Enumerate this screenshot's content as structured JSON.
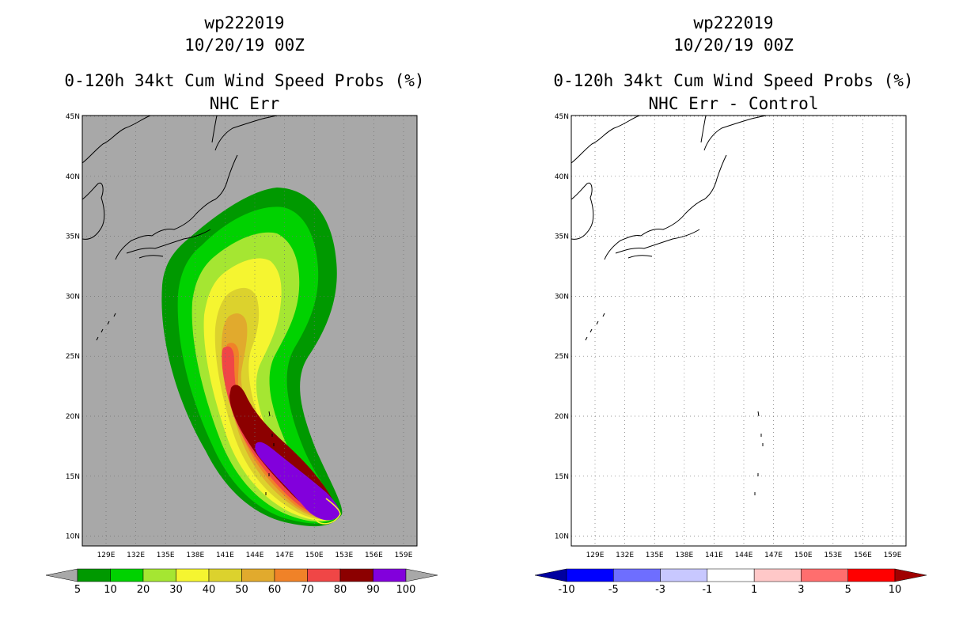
{
  "left": {
    "title_line1": "wp222019",
    "title_line2": "10/20/19 00Z",
    "title_line3": "0-120h 34kt Cum Wind Speed Probs (%)",
    "title_line4": "NHC Err",
    "background_color": "#a8a8a8"
  },
  "right": {
    "title_line1": "wp222019",
    "title_line2": "10/20/19 00Z",
    "title_line3": "0-120h 34kt Cum Wind Speed Probs (%)",
    "title_line4": "NHC Err - Control",
    "background_color": "#ffffff"
  },
  "axes": {
    "lat_labels": [
      "45N",
      "40N",
      "35N",
      "30N",
      "25N",
      "20N",
      "15N",
      "10N"
    ],
    "lon_labels": [
      "129E",
      "132E",
      "135E",
      "138E",
      "141E",
      "144E",
      "147E",
      "150E",
      "153E",
      "156E",
      "159E"
    ]
  },
  "prob_colorbar": {
    "colors": [
      "#a8a8a8",
      "#009900",
      "#00d200",
      "#a5e632",
      "#f5f530",
      "#dcd22d",
      "#e1aa2d",
      "#f08228",
      "#f04646",
      "#8c0000",
      "#8200dc",
      "#a8a8a8"
    ],
    "labels": [
      "5",
      "10",
      "20",
      "30",
      "40",
      "50",
      "60",
      "70",
      "80",
      "90",
      "100"
    ]
  },
  "diff_colorbar": {
    "colors": [
      "#0000a0",
      "#0000ff",
      "#6e6eff",
      "#c8c8ff",
      "#ffffff",
      "#ffc8c8",
      "#ff6e6e",
      "#ff0000",
      "#a00000"
    ],
    "labels": [
      "-10",
      "-5",
      "-3",
      "-1",
      "1",
      "3",
      "5",
      "10"
    ]
  },
  "probability_bands": [
    "5",
    "10",
    "20",
    "30",
    "40",
    "50",
    "60",
    "70",
    "80",
    "90",
    "100"
  ]
}
